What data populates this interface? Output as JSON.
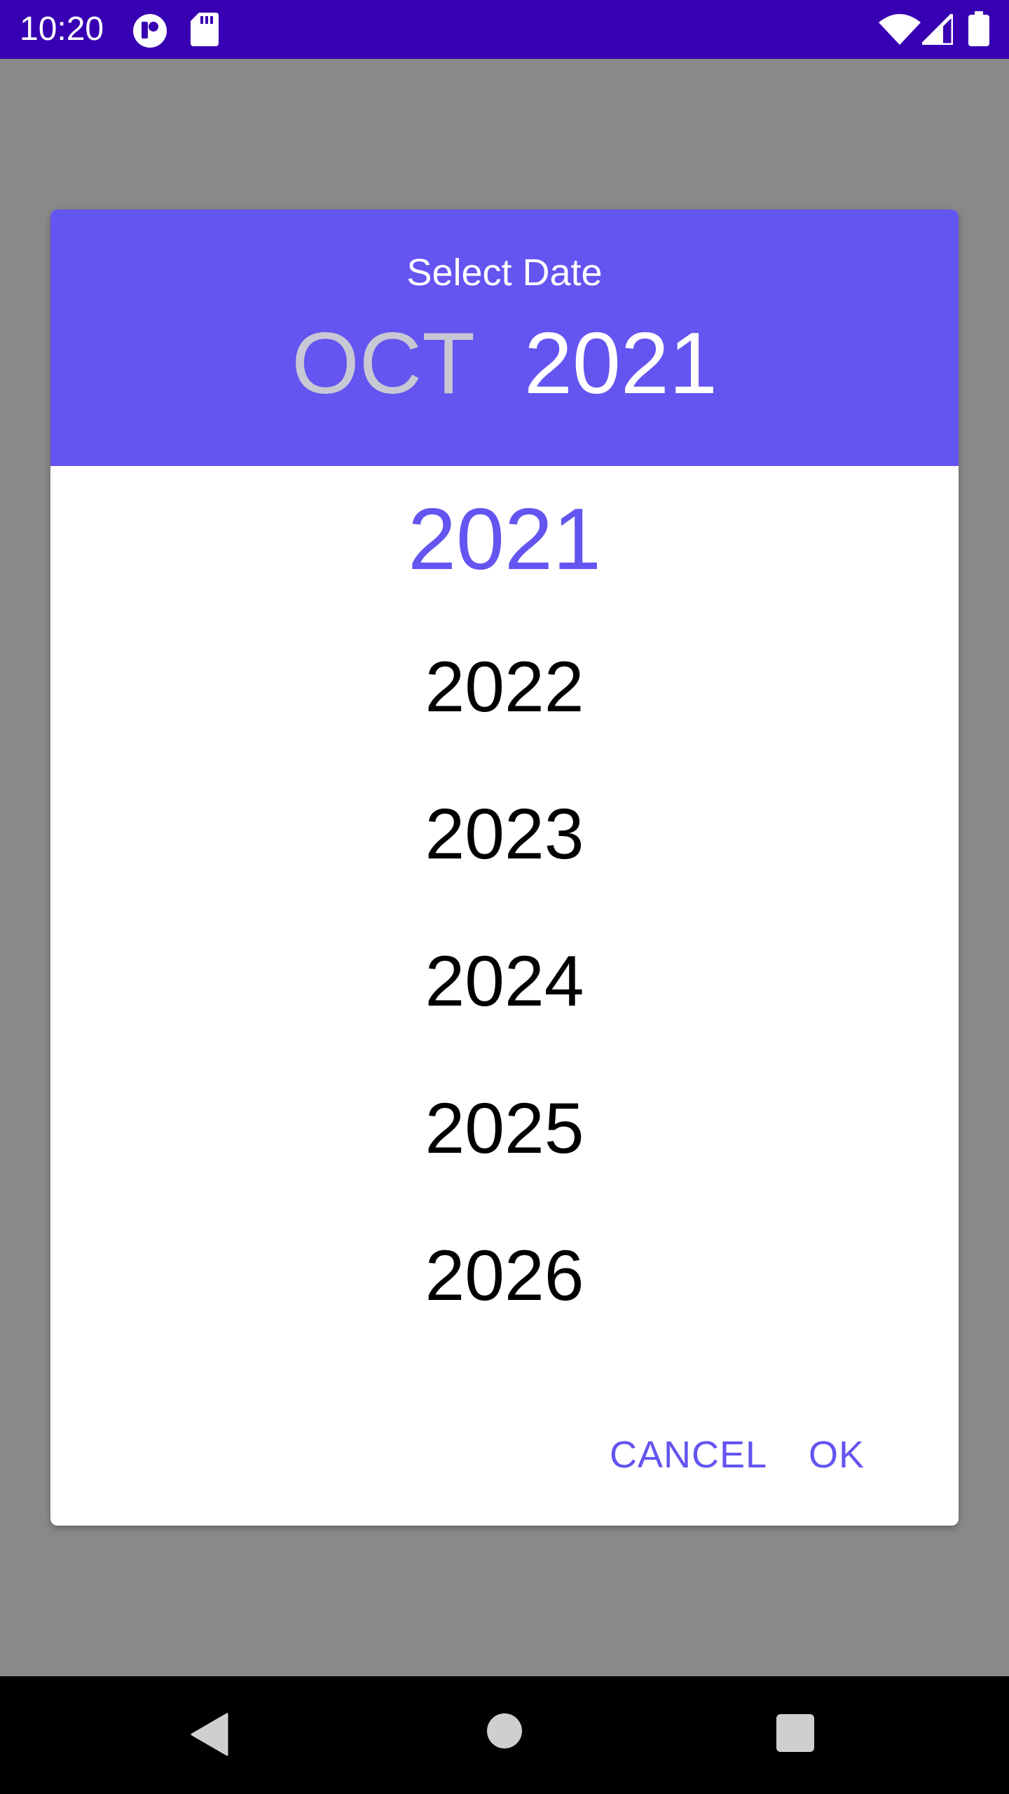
{
  "status_bar": {
    "time": "10:20",
    "left_icons": [
      "app-notification-icon",
      "sd-card-icon"
    ],
    "right_icons": [
      "wifi-icon",
      "cell-signal-icon",
      "battery-icon"
    ]
  },
  "dialog": {
    "title": "Select Date",
    "selected_month": "OCT",
    "selected_year": "2021",
    "years": [
      "2021",
      "2022",
      "2023",
      "2024",
      "2025",
      "2026"
    ],
    "cancel_label": "CANCEL",
    "ok_label": "OK"
  },
  "nav_bar": {
    "buttons": [
      "back-icon",
      "home-icon",
      "recents-icon"
    ]
  },
  "colors": {
    "status_bar": "#3800b3",
    "accent": "#6454f0",
    "scrim": "#898989",
    "dim_month": "#c8c8d4"
  }
}
